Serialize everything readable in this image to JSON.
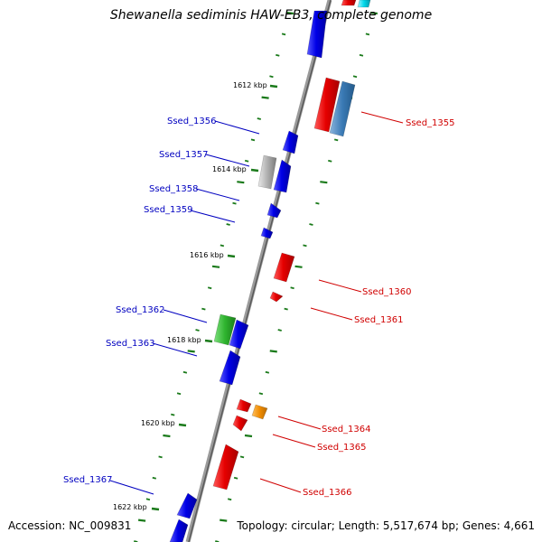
{
  "title": "Shewanella sediminis HAW-EB3, complete genome",
  "footer": {
    "accession": "Accession: NC_009831",
    "topology": "Topology: circular; Length: 5,517,674 bp; Genes: 4,661"
  },
  "kbp_marks": [
    {
      "label": "1612 kbp",
      "pos": 1612
    },
    {
      "label": "1614 kbp",
      "pos": 1614
    },
    {
      "label": "1616 kbp",
      "pos": 1616
    },
    {
      "label": "1618 kbp",
      "pos": 1618
    },
    {
      "label": "1620 kbp",
      "pos": 1620
    },
    {
      "label": "1622 kbp",
      "pos": 1622
    }
  ],
  "gene_labels": {
    "Ssed_1355": "Ssed_1355",
    "Ssed_1356": "Ssed_1356",
    "Ssed_1357": "Ssed_1357",
    "Ssed_1358": "Ssed_1358",
    "Ssed_1359": "Ssed_1359",
    "Ssed_1360": "Ssed_1360",
    "Ssed_1361": "Ssed_1361",
    "Ssed_1362": "Ssed_1362",
    "Ssed_1363": "Ssed_1363",
    "Ssed_1364": "Ssed_1364",
    "Ssed_1365": "Ssed_1365",
    "Ssed_1366": "Ssed_1366",
    "Ssed_1367": "Ssed_1367"
  },
  "colors": {
    "forward_strand": "#e00000",
    "reverse_strand": "#0000e6",
    "left_label": "#0000c0",
    "right_label": "#d00000",
    "backbone": "#808080",
    "tick": "#1a7a1a",
    "steelblue_gene": "#3a7ab5",
    "gray_gene": "#a0a0a0",
    "green_gene": "#30b030",
    "orange_gene": "#f08c00",
    "cyan_gene": "#00d0e0"
  }
}
